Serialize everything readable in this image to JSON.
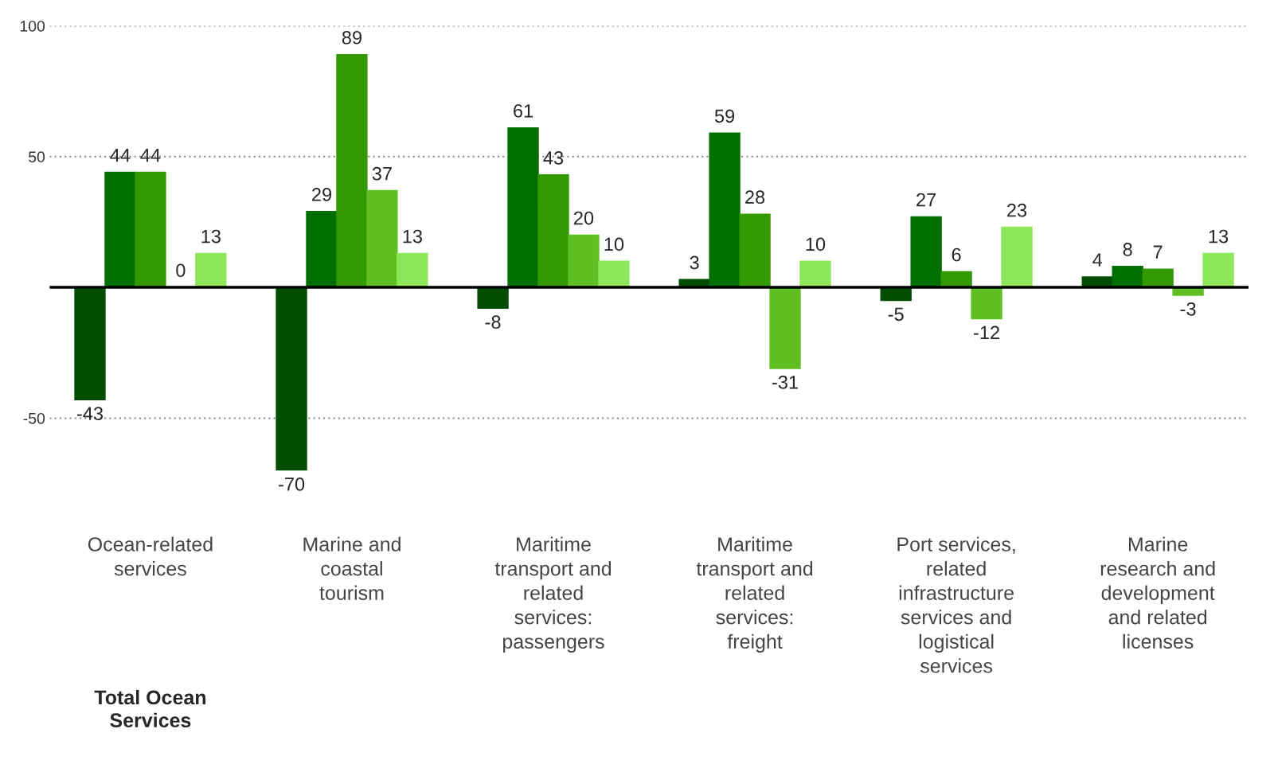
{
  "chart_data": {
    "type": "bar",
    "categories": [
      "Ocean-related\nservices",
      "Marine and\ncoastal\ntourism",
      "Maritime\ntransport and\nrelated\nservices:\npassengers",
      "Maritime\ntransport and\nrelated\nservices:\nfreight",
      "Port services,\nrelated\ninfrastructure\nservices and\nlogistical\nservices",
      "Marine\nresearch and\ndevelopment\nand related\nlicenses"
    ],
    "series": [
      {
        "color": "#004d00",
        "values": [
          -43,
          -70,
          -8,
          3,
          -5,
          4
        ]
      },
      {
        "color": "#006e00",
        "values": [
          44,
          29,
          61,
          59,
          27,
          8
        ]
      },
      {
        "color": "#339900",
        "values": [
          44,
          89,
          43,
          28,
          6,
          7
        ]
      },
      {
        "color": "#5fbf22",
        "values": [
          0,
          37,
          20,
          -31,
          -12,
          -3
        ]
      },
      {
        "color": "#8ee65a",
        "values": [
          13,
          13,
          10,
          10,
          23,
          13
        ]
      }
    ],
    "ylim": [
      -70,
      100
    ],
    "yticks": [
      -50,
      50,
      100
    ],
    "grid": "y",
    "data_labels": true,
    "legend": false,
    "annotations": [
      "Total Ocean\nServices"
    ]
  }
}
